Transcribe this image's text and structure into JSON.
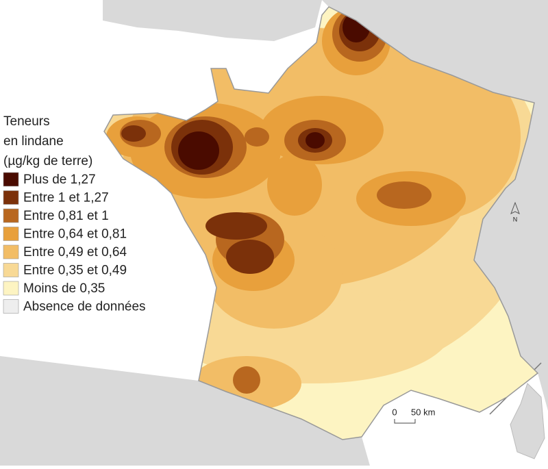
{
  "legend": {
    "title": [
      "Teneurs",
      "en lindane",
      "(µg/kg de terre)"
    ],
    "items": [
      {
        "label": "Plus de 1,27",
        "color": "#4a0b00"
      },
      {
        "label": "Entre 1 et 1,27",
        "color": "#7b310a"
      },
      {
        "label": "Entre 0,81 et 1",
        "color": "#b8671f"
      },
      {
        "label": "Entre 0,64 et 0,81",
        "color": "#e8a03c"
      },
      {
        "label": "Entre 0,49 et 0,64",
        "color": "#f2bd66"
      },
      {
        "label": "Entre 0,35 et 0,49",
        "color": "#f8d995"
      },
      {
        "label": "Moins de 0,35",
        "color": "#fdf4c2"
      },
      {
        "label": "Absence de données",
        "color": "#eeeeee"
      }
    ]
  },
  "scale_bar": {
    "labels": [
      "0",
      "50 km"
    ]
  },
  "north_arrow": {
    "label": "N"
  }
}
